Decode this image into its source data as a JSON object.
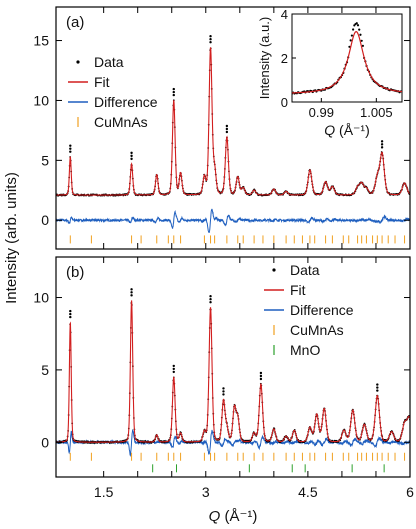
{
  "figure": {
    "xlabel_main": "Q",
    "xlabel_unit": "(Å⁻¹)",
    "ylabel": "Intensity (arb. units)",
    "x_ticks": [
      "1.5",
      "2",
      "2.5",
      "3",
      "3.5",
      "4",
      "4.5",
      "5",
      "5.5",
      "6"
    ],
    "x_tick_labels_shown": [
      "1.5",
      "3",
      "4.5",
      "6"
    ]
  },
  "colors": {
    "data": "#000000",
    "fit": "#d21f1f",
    "difference": "#1f5fbf",
    "cumnas_ticks": "#f0a020",
    "mno_ticks": "#2ca02c"
  },
  "chart_data": [
    {
      "type": "line",
      "panel_label": "(a)",
      "xlim": [
        0.8,
        6.0
      ],
      "ylim": [
        -2.4,
        17.8
      ],
      "y_ticks": [
        0,
        5,
        10,
        15
      ],
      "legend": [
        "Data",
        "Fit",
        "Difference",
        "CuMnAs"
      ],
      "legend_position": "top-left",
      "background": 2.1,
      "difference_offset": 0,
      "peaks": [
        {
          "x": 1.01,
          "h": 3.2
        },
        {
          "x": 1.91,
          "h": 2.6
        },
        {
          "x": 2.28,
          "h": 1.7
        },
        {
          "x": 2.53,
          "h": 7.9
        },
        {
          "x": 2.63,
          "h": 1.8
        },
        {
          "x": 2.98,
          "h": 1.5
        },
        {
          "x": 3.07,
          "h": 12.2
        },
        {
          "x": 3.13,
          "h": 2.0
        },
        {
          "x": 3.31,
          "h": 4.8
        },
        {
          "x": 3.47,
          "h": 1.5
        },
        {
          "x": 3.55,
          "h": 0.6
        },
        {
          "x": 3.71,
          "h": 0.4
        },
        {
          "x": 4.0,
          "h": 0.5
        },
        {
          "x": 4.18,
          "h": 0.3
        },
        {
          "x": 4.53,
          "h": 2.1
        },
        {
          "x": 4.76,
          "h": 1.1
        },
        {
          "x": 4.86,
          "h": 0.7
        },
        {
          "x": 5.23,
          "h": 0.6
        },
        {
          "x": 5.29,
          "h": 0.9
        },
        {
          "x": 5.36,
          "h": 0.5
        },
        {
          "x": 5.52,
          "h": 1.4
        },
        {
          "x": 5.59,
          "h": 3.4
        },
        {
          "x": 5.92,
          "h": 1.0
        }
      ],
      "reflections": [
        {
          "name": "CuMnAs",
          "y": -1.6,
          "positions": [
            1.01,
            1.32,
            1.91,
            2.05,
            2.28,
            2.45,
            2.53,
            2.63,
            2.98,
            3.07,
            3.13,
            3.31,
            3.47,
            3.55,
            3.71,
            3.84,
            4.0,
            4.18,
            4.3,
            4.42,
            4.53,
            4.6,
            4.76,
            4.86,
            5.02,
            5.1,
            5.23,
            5.29,
            5.36,
            5.45,
            5.52,
            5.59,
            5.68,
            5.78,
            5.92
          ]
        }
      ],
      "inset": {
        "ylabel": "Intensity (a.u.)",
        "xlabel_main": "Q",
        "xlabel_unit": "(Å⁻¹)",
        "xlim": [
          0.982,
          1.012
        ],
        "ylim": [
          0,
          4
        ],
        "x_ticks": [
          "0.99",
          "1.005"
        ],
        "y_ticks": [
          "0",
          "2",
          "4"
        ],
        "peak_center": 0.9995,
        "peak_height": 2.85,
        "peak_width": 0.0026,
        "baseline": 0.35
      }
    },
    {
      "type": "line",
      "panel_label": "(b)",
      "xlim": [
        0.8,
        6.0
      ],
      "ylim": [
        -2.4,
        12.8
      ],
      "y_ticks": [
        0,
        5,
        10
      ],
      "legend": [
        "Data",
        "Fit",
        "Difference",
        "CuMnAs",
        "MnO"
      ],
      "legend_position": "top-right",
      "background": 0.0,
      "difference_offset": 0,
      "peaks": [
        {
          "x": 1.01,
          "h": 8.3
        },
        {
          "x": 1.91,
          "h": 9.8
        },
        {
          "x": 2.28,
          "h": 0.5
        },
        {
          "x": 2.53,
          "h": 4.5
        },
        {
          "x": 2.63,
          "h": 0.6
        },
        {
          "x": 2.98,
          "h": 0.7
        },
        {
          "x": 3.07,
          "h": 9.3
        },
        {
          "x": 3.26,
          "h": 2.8
        },
        {
          "x": 3.31,
          "h": 0.9
        },
        {
          "x": 3.42,
          "h": 2.3
        },
        {
          "x": 3.47,
          "h": 1.6
        },
        {
          "x": 3.71,
          "h": 0.6
        },
        {
          "x": 3.81,
          "h": 4.0
        },
        {
          "x": 4.0,
          "h": 0.9
        },
        {
          "x": 4.18,
          "h": 0.4
        },
        {
          "x": 4.3,
          "h": 0.8
        },
        {
          "x": 4.53,
          "h": 1.0
        },
        {
          "x": 4.63,
          "h": 1.9
        },
        {
          "x": 4.74,
          "h": 2.3
        },
        {
          "x": 5.03,
          "h": 0.8
        },
        {
          "x": 5.16,
          "h": 2.2
        },
        {
          "x": 5.33,
          "h": 1.2
        },
        {
          "x": 5.52,
          "h": 3.2
        },
        {
          "x": 5.73,
          "h": 0.7
        },
        {
          "x": 5.92,
          "h": 1.2
        },
        {
          "x": 5.99,
          "h": 1.6
        }
      ],
      "reflections": [
        {
          "name": "CuMnAs",
          "y": -1.0,
          "positions": [
            1.01,
            1.32,
            1.91,
            2.05,
            2.28,
            2.45,
            2.53,
            2.63,
            2.98,
            3.07,
            3.13,
            3.31,
            3.47,
            3.55,
            3.71,
            3.84,
            4.0,
            4.18,
            4.3,
            4.42,
            4.53,
            4.6,
            4.76,
            4.86,
            5.02,
            5.1,
            5.23,
            5.29,
            5.36,
            5.45,
            5.52,
            5.59,
            5.68,
            5.78,
            5.92
          ]
        },
        {
          "name": "MnO",
          "y": -1.8,
          "positions": [
            2.22,
            2.57,
            3.64,
            4.27,
            4.46,
            5.15,
            5.62
          ]
        }
      ]
    }
  ]
}
